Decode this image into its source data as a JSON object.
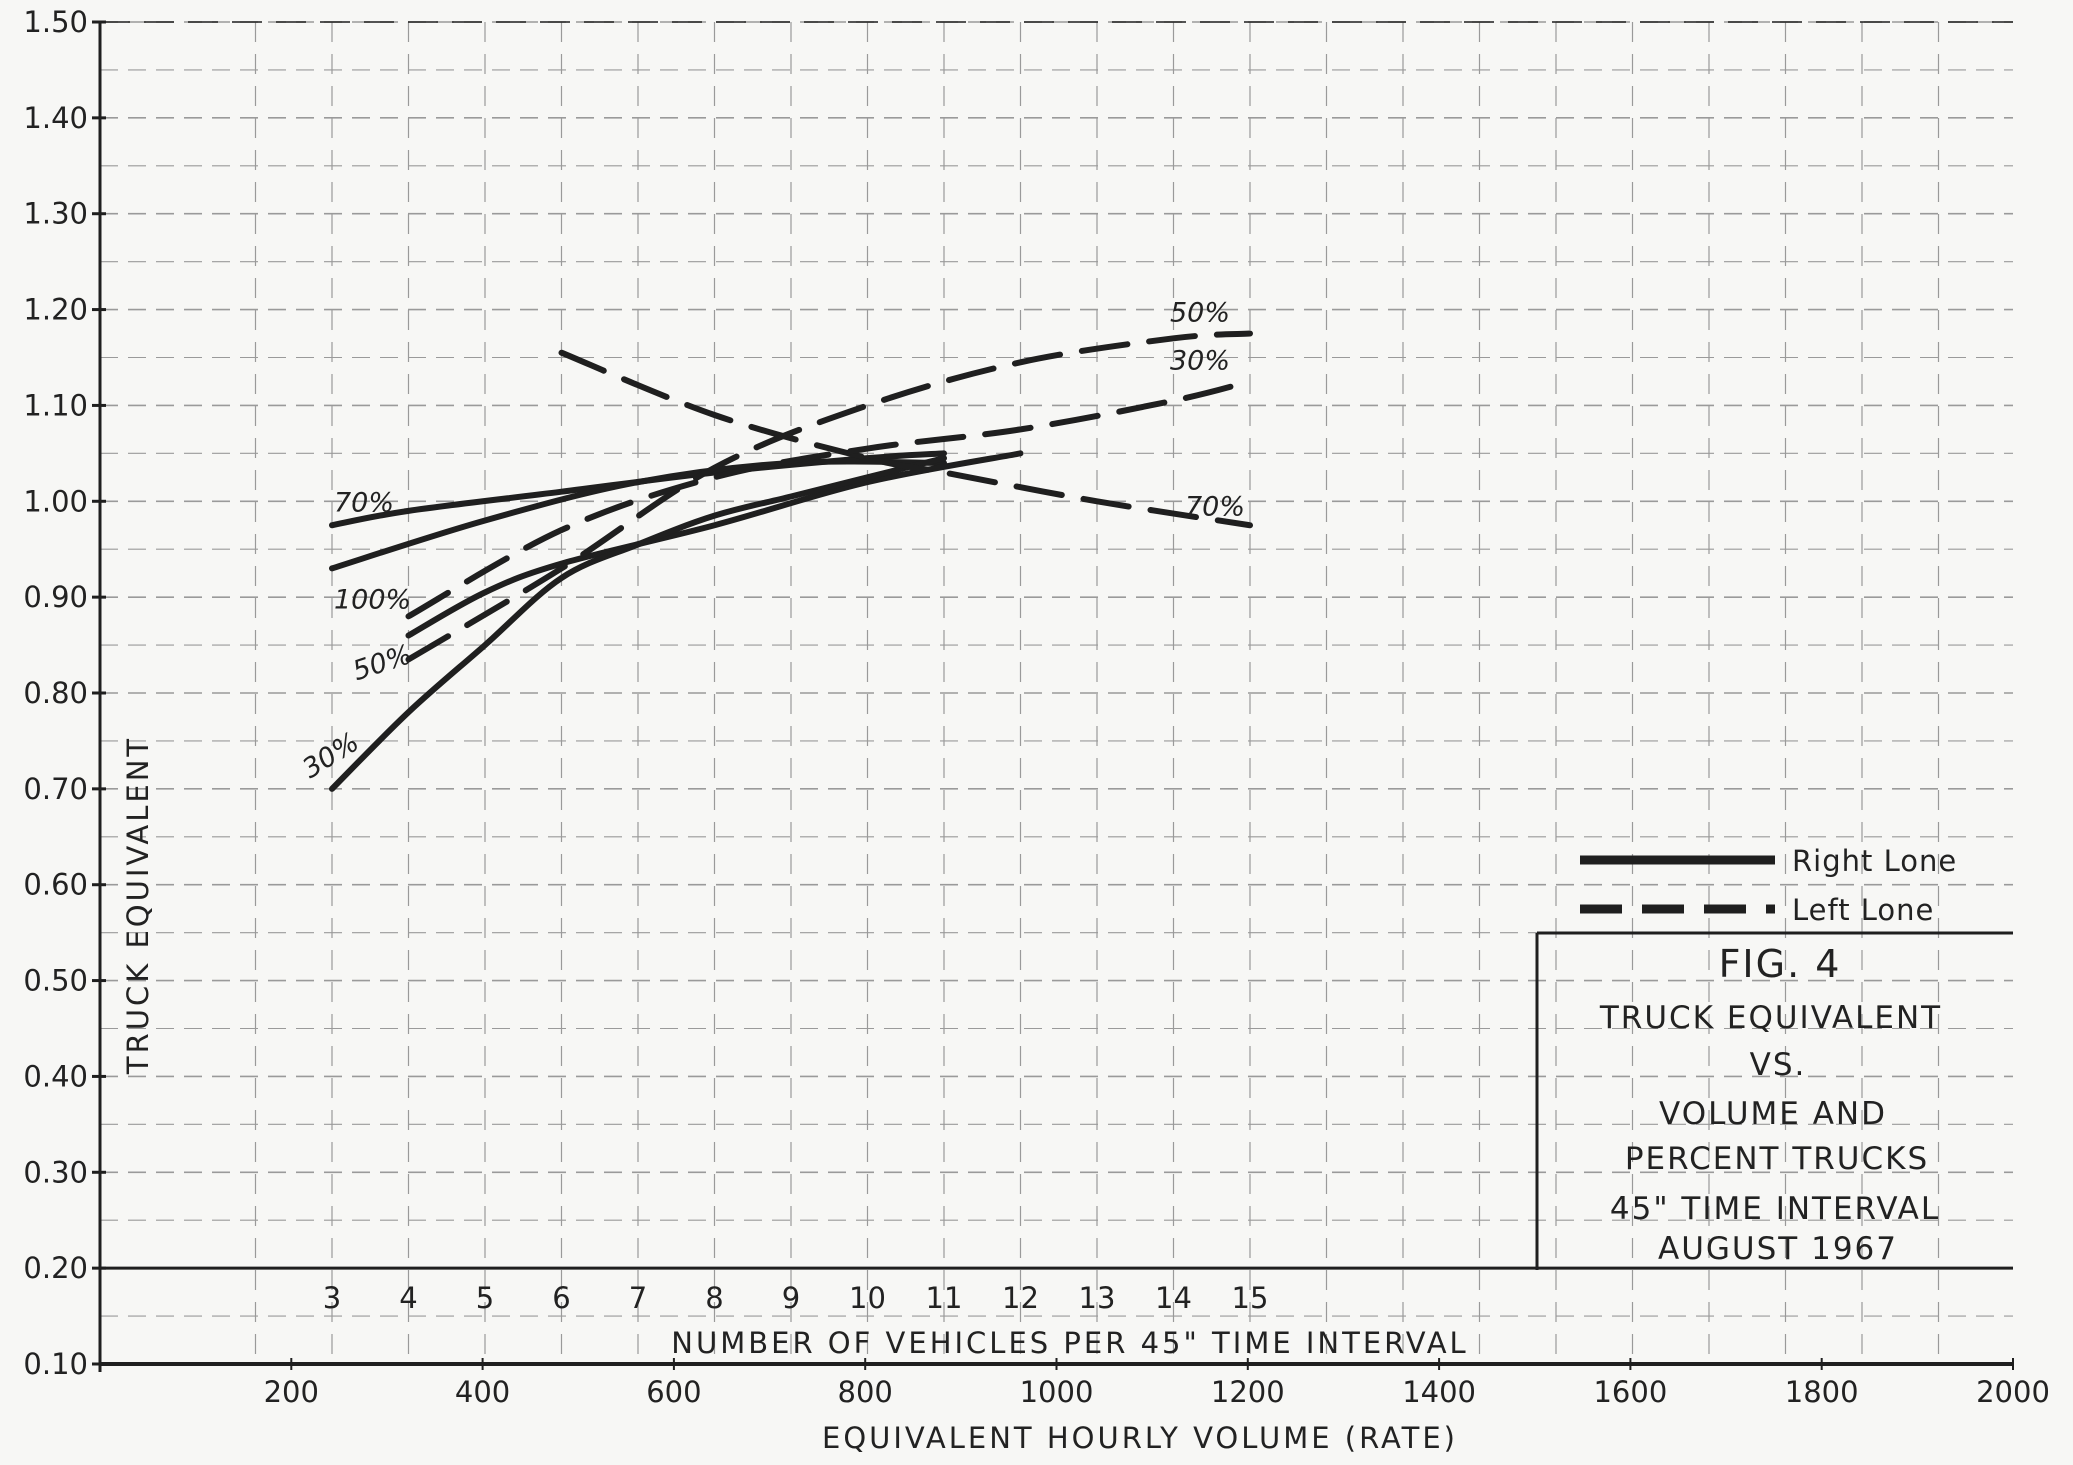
{
  "chart_data": {
    "type": "line",
    "ylabel": "TRUCK EQUIVALENT",
    "xlabel": "NUMBER OF VEHICLES PER 45\" TIME INTERVAL",
    "x2label": "EQUIVALENT HOURLY VOLUME  (RATE)",
    "ylim": [
      0.1,
      1.5
    ],
    "y_ticks": [
      "0.10",
      "0.20",
      "0.30",
      "0.40",
      "0.50",
      "0.60",
      "0.70",
      "0.80",
      "0.90",
      "1.00",
      "1.10",
      "1.20",
      "1.30",
      "1.40",
      "1.50"
    ],
    "xlim": [
      0,
      2000
    ],
    "x_vehicle_ticks": [
      "3",
      "4",
      "5",
      "6",
      "7",
      "8",
      "9",
      "10",
      "11",
      "12",
      "13",
      "14",
      "15"
    ],
    "x_volume_ticks": [
      "200",
      "400",
      "600",
      "800",
      "1000",
      "1200",
      "1400",
      "1600",
      "1800",
      "2000"
    ],
    "grid": true,
    "legend_position": "bottom-right",
    "legend": [
      {
        "label": "Right Lone",
        "style": "solid"
      },
      {
        "label": "Left  Lone",
        "style": "dashed"
      }
    ],
    "series": [
      {
        "name": "70%",
        "lane": "right",
        "x": [
          3,
          4,
          6,
          8,
          10,
          11
        ],
        "y": [
          0.975,
          0.99,
          1.01,
          1.03,
          1.045,
          1.05
        ]
      },
      {
        "name": "100%",
        "lane": "right",
        "x": [
          3,
          5,
          7,
          9,
          11
        ],
        "y": [
          0.93,
          0.98,
          1.02,
          1.04,
          1.04
        ]
      },
      {
        "name": "50%",
        "lane": "right",
        "x": [
          4,
          5,
          6,
          8,
          10,
          12
        ],
        "y": [
          0.86,
          0.905,
          0.935,
          0.975,
          1.02,
          1.05
        ]
      },
      {
        "name": "30%",
        "lane": "right",
        "x": [
          3,
          4,
          5,
          6,
          7,
          8,
          9,
          10,
          11
        ],
        "y": [
          0.7,
          0.78,
          0.85,
          0.92,
          0.955,
          0.985,
          1.005,
          1.025,
          1.045
        ]
      },
      {
        "name": "70%",
        "lane": "left",
        "x": [
          6,
          8,
          10,
          11,
          13,
          15
        ],
        "y": [
          1.155,
          1.09,
          1.045,
          1.03,
          1.0,
          0.975
        ]
      },
      {
        "name": "50%",
        "lane": "left",
        "x": [
          4,
          6,
          8,
          10,
          12,
          14,
          15
        ],
        "y": [
          0.835,
          0.93,
          1.035,
          1.1,
          1.145,
          1.17,
          1.175
        ]
      },
      {
        "name": "30%",
        "lane": "left",
        "x": [
          4,
          6,
          8,
          10,
          12,
          14,
          15
        ],
        "y": [
          0.88,
          0.97,
          1.025,
          1.055,
          1.075,
          1.105,
          1.125
        ]
      }
    ],
    "curve_labels": [
      {
        "text": "70%",
        "series_index": 0
      },
      {
        "text": "100%",
        "series_index": 1
      },
      {
        "text": "50%",
        "series_index": 2
      },
      {
        "text": "30%",
        "series_index": 3
      },
      {
        "text": "70%",
        "series_index": 4
      },
      {
        "text": "50%",
        "series_index": 5
      },
      {
        "text": "30%",
        "series_index": 6
      }
    ]
  },
  "figure_box": {
    "title": "FIG. 4",
    "lines": [
      "TRUCK   EQUIVALENT",
      "VS.",
      "VOLUME  AND",
      "PERCENT  TRUCKS",
      "45\"  TIME  INTERVAL",
      "AUGUST 1967"
    ]
  },
  "colors": {
    "ink": "#1f1f1f",
    "grid": "#9a9a9a",
    "paper": "#f7f7f5"
  }
}
